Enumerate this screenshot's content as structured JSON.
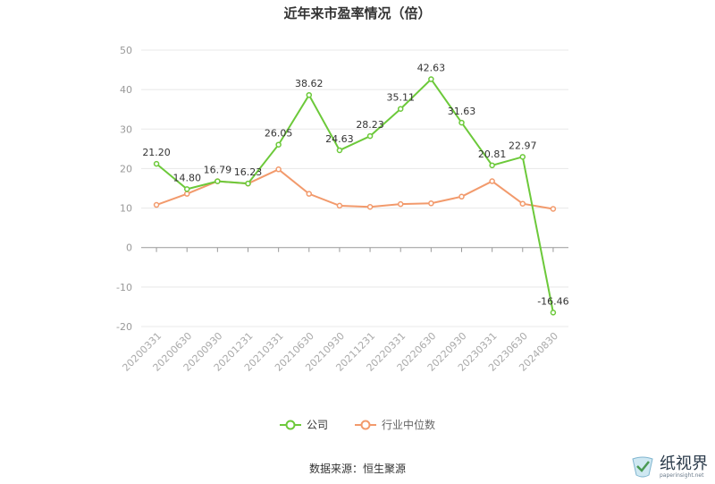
{
  "title": "近年来市盈率情况（倍）",
  "source": "数据来源：恒生聚源",
  "watermark": {
    "name": "纸视界",
    "url": "paperinsight.net"
  },
  "colors": {
    "company": "#6cc93a",
    "industry": "#f29a6c",
    "grid": "#e8e8e8",
    "axis": "#999999",
    "label": "#333333"
  },
  "chart_data": {
    "type": "line",
    "title": "近年来市盈率情况（倍）",
    "xlabel": "",
    "ylabel": "",
    "ylim": [
      -20,
      50
    ],
    "yticks": [
      50,
      40,
      30,
      20,
      10,
      0,
      -10,
      -20
    ],
    "grid": true,
    "legend_position": "bottom",
    "categories": [
      "20200331",
      "20200630",
      "20200930",
      "20201231",
      "20210331",
      "20210630",
      "20210930",
      "20211231",
      "20220331",
      "20220630",
      "20220930",
      "20230331",
      "20230630",
      "20240830"
    ],
    "series": [
      {
        "name": "公司",
        "color": "#6cc93a",
        "values": [
          21.2,
          14.8,
          16.79,
          16.23,
          26.05,
          38.62,
          24.63,
          28.23,
          35.11,
          42.63,
          31.63,
          20.81,
          22.97,
          -16.46
        ],
        "labels": [
          "21.20",
          "14.80",
          "16.79",
          "16.23",
          "26.05",
          "38.62",
          "24.63",
          "28.23",
          "35.11",
          "42.63",
          "31.63",
          "20.81",
          "22.97",
          "-16.46"
        ]
      },
      {
        "name": "行业中位数",
        "color": "#f29a6c",
        "values": [
          10.8,
          13.6,
          16.8,
          16.2,
          19.8,
          13.6,
          10.6,
          10.3,
          11.0,
          11.2,
          12.9,
          16.8,
          11.1,
          9.8
        ]
      }
    ]
  }
}
